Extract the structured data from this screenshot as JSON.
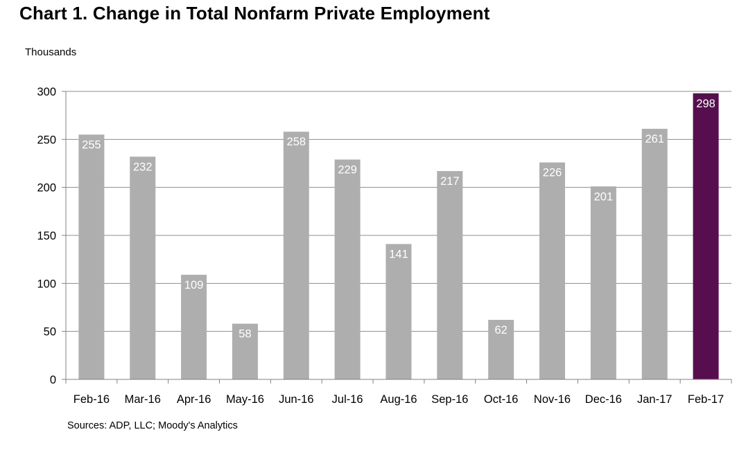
{
  "chart_data": {
    "type": "bar",
    "title": "Chart 1. Change in Total Nonfarm Private Employment",
    "ylabel": "Thousands",
    "xlabel": "",
    "categories": [
      "Feb-16",
      "Mar-16",
      "Apr-16",
      "May-16",
      "Jun-16",
      "Jul-16",
      "Aug-16",
      "Sep-16",
      "Oct-16",
      "Nov-16",
      "Dec-16",
      "Jan-17",
      "Feb-17"
    ],
    "values": [
      255,
      232,
      109,
      58,
      258,
      229,
      141,
      217,
      62,
      226,
      201,
      261,
      298
    ],
    "ylim": [
      0,
      300
    ],
    "yticks": [
      0,
      50,
      100,
      150,
      200,
      250,
      300
    ],
    "grid": true,
    "legend": "none",
    "colors": {
      "bar": "#aeaeae",
      "highlight": "#570e4e",
      "grid": "#8c8c8c",
      "data_label": "#ffffff"
    },
    "highlight_index": 12
  },
  "source_note": "Sources: ADP, LLC; Moody's Analytics"
}
